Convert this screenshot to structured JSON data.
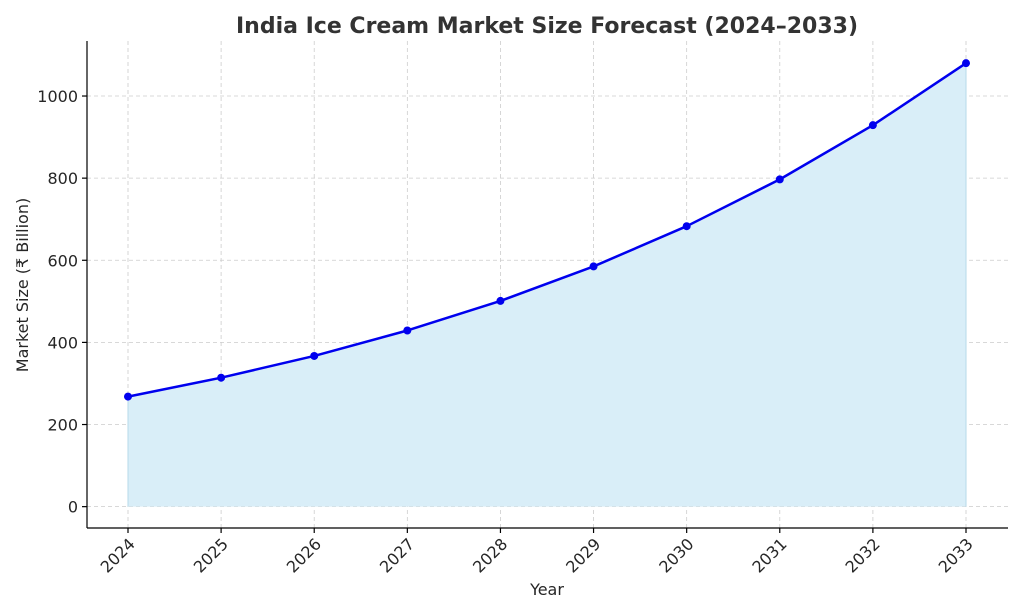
{
  "chart_data": {
    "type": "area",
    "title": "India Ice Cream Market Size Forecast (2024–2033)",
    "xlabel": "Year",
    "ylabel": "Market Size (₹ Billion)",
    "x": [
      "2024",
      "2025",
      "2026",
      "2027",
      "2028",
      "2029",
      "2030",
      "2031",
      "2032",
      "2033"
    ],
    "values": [
      268,
      314,
      367,
      429,
      501,
      585,
      683,
      797,
      929,
      1080
    ],
    "ylim": [
      -52,
      1134
    ],
    "yticks": [
      0,
      200,
      400,
      600,
      800,
      1000
    ],
    "grid": true,
    "colors": {
      "line": "#0000ee",
      "fill": "#d9eef8",
      "fill_edge": "#b6d9ea"
    }
  }
}
